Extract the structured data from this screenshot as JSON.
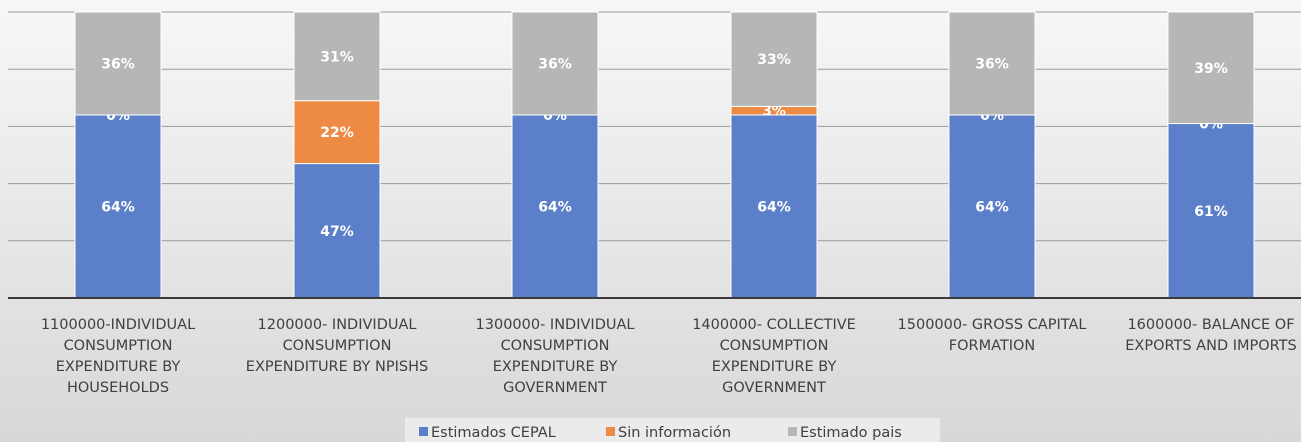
{
  "chart_data": {
    "type": "bar",
    "stacked": true,
    "percent_stacked": true,
    "title": "",
    "xlabel": "",
    "ylabel": "",
    "ylim": [
      0,
      100
    ],
    "grid": true,
    "legend_position": "bottom",
    "categories": [
      "1100000-INDIVIDUAL CONSUMPTION EXPENDITURE BY HOUSEHOLDS",
      "1200000- INDIVIDUAL CONSUMPTION EXPENDITURE BY NPISHS",
      "1300000- INDIVIDUAL CONSUMPTION EXPENDITURE BY GOVERNMENT",
      "1400000- COLLECTIVE CONSUMPTION EXPENDITURE BY GOVERNMENT",
      "1500000- GROSS CAPITAL FORMATION",
      "1600000- BALANCE OF EXPORTS AND IMPORTS"
    ],
    "category_label_lines": [
      [
        "1100000-INDIVIDUAL",
        "CONSUMPTION",
        "EXPENDITURE BY",
        "HOUSEHOLDS"
      ],
      [
        "1200000- INDIVIDUAL",
        "CONSUMPTION",
        "EXPENDITURE BY NPISHS"
      ],
      [
        "1300000- INDIVIDUAL",
        "CONSUMPTION",
        "EXPENDITURE BY",
        "GOVERNMENT"
      ],
      [
        "1400000- COLLECTIVE",
        "CONSUMPTION",
        "EXPENDITURE BY",
        "GOVERNMENT"
      ],
      [
        "1500000- GROSS CAPITAL",
        "FORMATION"
      ],
      [
        "1600000- BALANCE OF",
        "EXPORTS AND IMPORTS"
      ]
    ],
    "series": [
      {
        "name": "Estimados CEPAL",
        "color": "#5b7fc8",
        "values": [
          64,
          47,
          64,
          64,
          64,
          61
        ],
        "labels": [
          "64%",
          "47%",
          "64%",
          "64%",
          "64%",
          "61%"
        ]
      },
      {
        "name": "Sin información",
        "color": "#ed8b45",
        "values": [
          0,
          22,
          0,
          3,
          0,
          0
        ],
        "labels": [
          "0%",
          "22%",
          "0%",
          "3%",
          "0%",
          "0%"
        ]
      },
      {
        "name": "Estimado pais",
        "color": "#b6b6b6",
        "values": [
          36,
          31,
          36,
          33,
          36,
          39
        ],
        "labels": [
          "36%",
          "31%",
          "36%",
          "33%",
          "36%",
          "39%"
        ]
      }
    ]
  }
}
